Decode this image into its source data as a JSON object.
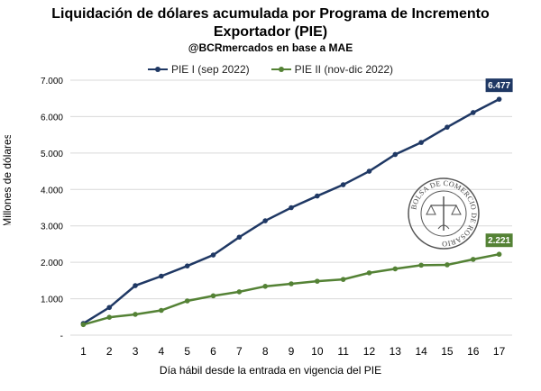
{
  "chart_data": {
    "type": "line",
    "title": "Liquidación de dólares acumulada por Programa de Incremento",
    "title_line2": "Exportador (PIE)",
    "subtitle": "@BCRmercados en base a MAE",
    "xlabel": "Día hábil desde la entrada en vigencia del PIE",
    "ylabel": "Millones de dólares",
    "x": [
      1,
      2,
      3,
      4,
      5,
      6,
      7,
      8,
      9,
      10,
      11,
      12,
      13,
      14,
      15,
      16,
      17
    ],
    "y_ticks": [
      "-",
      "1.000",
      "2.000",
      "3.000",
      "4.000",
      "5.000",
      "6.000",
      "7.000"
    ],
    "y_tick_values": [
      0,
      1000,
      2000,
      3000,
      4000,
      5000,
      6000,
      7000
    ],
    "ylim": [
      0,
      7000
    ],
    "grid": true,
    "legend_position": "top",
    "series": [
      {
        "name": "PIE I (sep 2022)",
        "color": "#1f3864",
        "values": [
          320,
          760,
          1360,
          1620,
          1900,
          2200,
          2690,
          3140,
          3500,
          3820,
          4130,
          4500,
          4960,
          5290,
          5710,
          6110,
          6477
        ],
        "end_label": "6.477"
      },
      {
        "name": "PIE II (nov-dic 2022)",
        "color": "#548235",
        "values": [
          290,
          490,
          570,
          680,
          940,
          1080,
          1190,
          1340,
          1410,
          1480,
          1530,
          1710,
          1820,
          1920,
          1930,
          2080,
          2221
        ],
        "end_label": "2.221"
      }
    ],
    "watermark_text": "BOLSA DE COMERCIO DE ROSARIO"
  }
}
